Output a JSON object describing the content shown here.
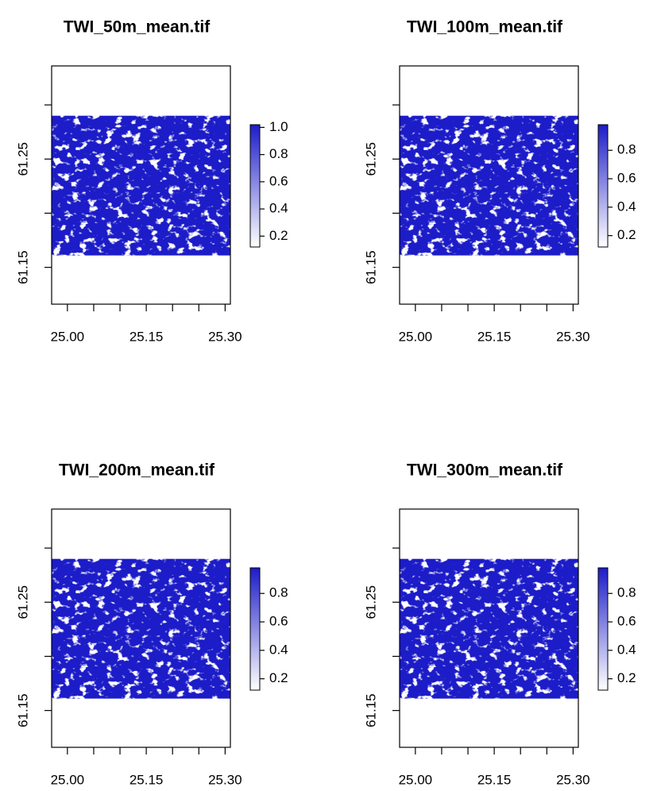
{
  "chart_data": [
    {
      "type": "raster",
      "title": "TWI_50m_mean.tif",
      "xlim": [
        24.97,
        25.31
      ],
      "ylim": [
        61.116,
        61.336
      ],
      "xticks": [
        {
          "value": 25.0,
          "label": "25.00"
        },
        {
          "value": 25.05,
          "label": null
        },
        {
          "value": 25.1,
          "label": null
        },
        {
          "value": 25.15,
          "label": "25.15"
        },
        {
          "value": 25.2,
          "label": null
        },
        {
          "value": 25.25,
          "label": null
        },
        {
          "value": 25.3,
          "label": "25.30"
        }
      ],
      "yticks": [
        {
          "value": 61.15,
          "label": "61.15"
        },
        {
          "value": 61.2,
          "label": null
        },
        {
          "value": 61.25,
          "label": "61.25"
        },
        {
          "value": 61.3,
          "label": null
        }
      ],
      "raster_extent": {
        "x": [
          24.97,
          25.31
        ],
        "y": [
          61.161,
          61.29
        ]
      },
      "palette": [
        "#ffffff",
        "#1c1cc8"
      ],
      "colorlim": [
        0.12,
        1.02
      ],
      "colorticks": [
        {
          "value": 1,
          "label": "1.0"
        },
        0.8,
        0.6,
        0.4,
        0.2
      ]
    },
    {
      "type": "raster",
      "title": "TWI_100m_mean.tif",
      "xlim": [
        24.97,
        25.31
      ],
      "ylim": [
        61.116,
        61.336
      ],
      "xticks": [
        {
          "value": 25.0,
          "label": "25.00"
        },
        {
          "value": 25.05,
          "label": null
        },
        {
          "value": 25.1,
          "label": null
        },
        {
          "value": 25.15,
          "label": "25.15"
        },
        {
          "value": 25.2,
          "label": null
        },
        {
          "value": 25.25,
          "label": null
        },
        {
          "value": 25.3,
          "label": "25.30"
        }
      ],
      "yticks": [
        {
          "value": 61.15,
          "label": "61.15"
        },
        {
          "value": 61.2,
          "label": null
        },
        {
          "value": 61.25,
          "label": "61.25"
        },
        {
          "value": 61.3,
          "label": null
        }
      ],
      "raster_extent": {
        "x": [
          24.97,
          25.31
        ],
        "y": [
          61.161,
          61.29
        ]
      },
      "palette": [
        "#ffffff",
        "#1c1cc8"
      ],
      "colorlim": [
        0.12,
        0.98
      ],
      "colorticks": [
        0.8,
        0.6,
        0.4,
        0.2
      ]
    },
    {
      "type": "raster",
      "title": "TWI_200m_mean.tif",
      "xlim": [
        24.97,
        25.31
      ],
      "ylim": [
        61.116,
        61.336
      ],
      "xticks": [
        {
          "value": 25.0,
          "label": "25.00"
        },
        {
          "value": 25.05,
          "label": null
        },
        {
          "value": 25.1,
          "label": null
        },
        {
          "value": 25.15,
          "label": "25.15"
        },
        {
          "value": 25.2,
          "label": null
        },
        {
          "value": 25.25,
          "label": null
        },
        {
          "value": 25.3,
          "label": "25.30"
        }
      ],
      "yticks": [
        {
          "value": 61.15,
          "label": "61.15"
        },
        {
          "value": 61.2,
          "label": null
        },
        {
          "value": 61.25,
          "label": "61.25"
        },
        {
          "value": 61.3,
          "label": null
        }
      ],
      "raster_extent": {
        "x": [
          24.97,
          25.31
        ],
        "y": [
          61.161,
          61.29
        ]
      },
      "palette": [
        "#ffffff",
        "#1c1cc8"
      ],
      "colorlim": [
        0.12,
        0.98
      ],
      "colorticks": [
        0.8,
        0.6,
        0.4,
        0.2
      ]
    },
    {
      "type": "raster",
      "title": "TWI_300m_mean.tif",
      "xlim": [
        24.97,
        25.31
      ],
      "ylim": [
        61.116,
        61.336
      ],
      "xticks": [
        {
          "value": 25.0,
          "label": "25.00"
        },
        {
          "value": 25.05,
          "label": null
        },
        {
          "value": 25.1,
          "label": null
        },
        {
          "value": 25.15,
          "label": "25.15"
        },
        {
          "value": 25.2,
          "label": null
        },
        {
          "value": 25.25,
          "label": null
        },
        {
          "value": 25.3,
          "label": "25.30"
        }
      ],
      "yticks": [
        {
          "value": 61.15,
          "label": "61.15"
        },
        {
          "value": 61.2,
          "label": null
        },
        {
          "value": 61.25,
          "label": "61.25"
        },
        {
          "value": 61.3,
          "label": null
        }
      ],
      "raster_extent": {
        "x": [
          24.97,
          25.31
        ],
        "y": [
          61.161,
          61.29
        ]
      },
      "palette": [
        "#ffffff",
        "#1c1cc8"
      ],
      "colorlim": [
        0.12,
        0.98
      ],
      "colorticks": [
        0.8,
        0.6,
        0.4,
        0.2
      ]
    }
  ]
}
